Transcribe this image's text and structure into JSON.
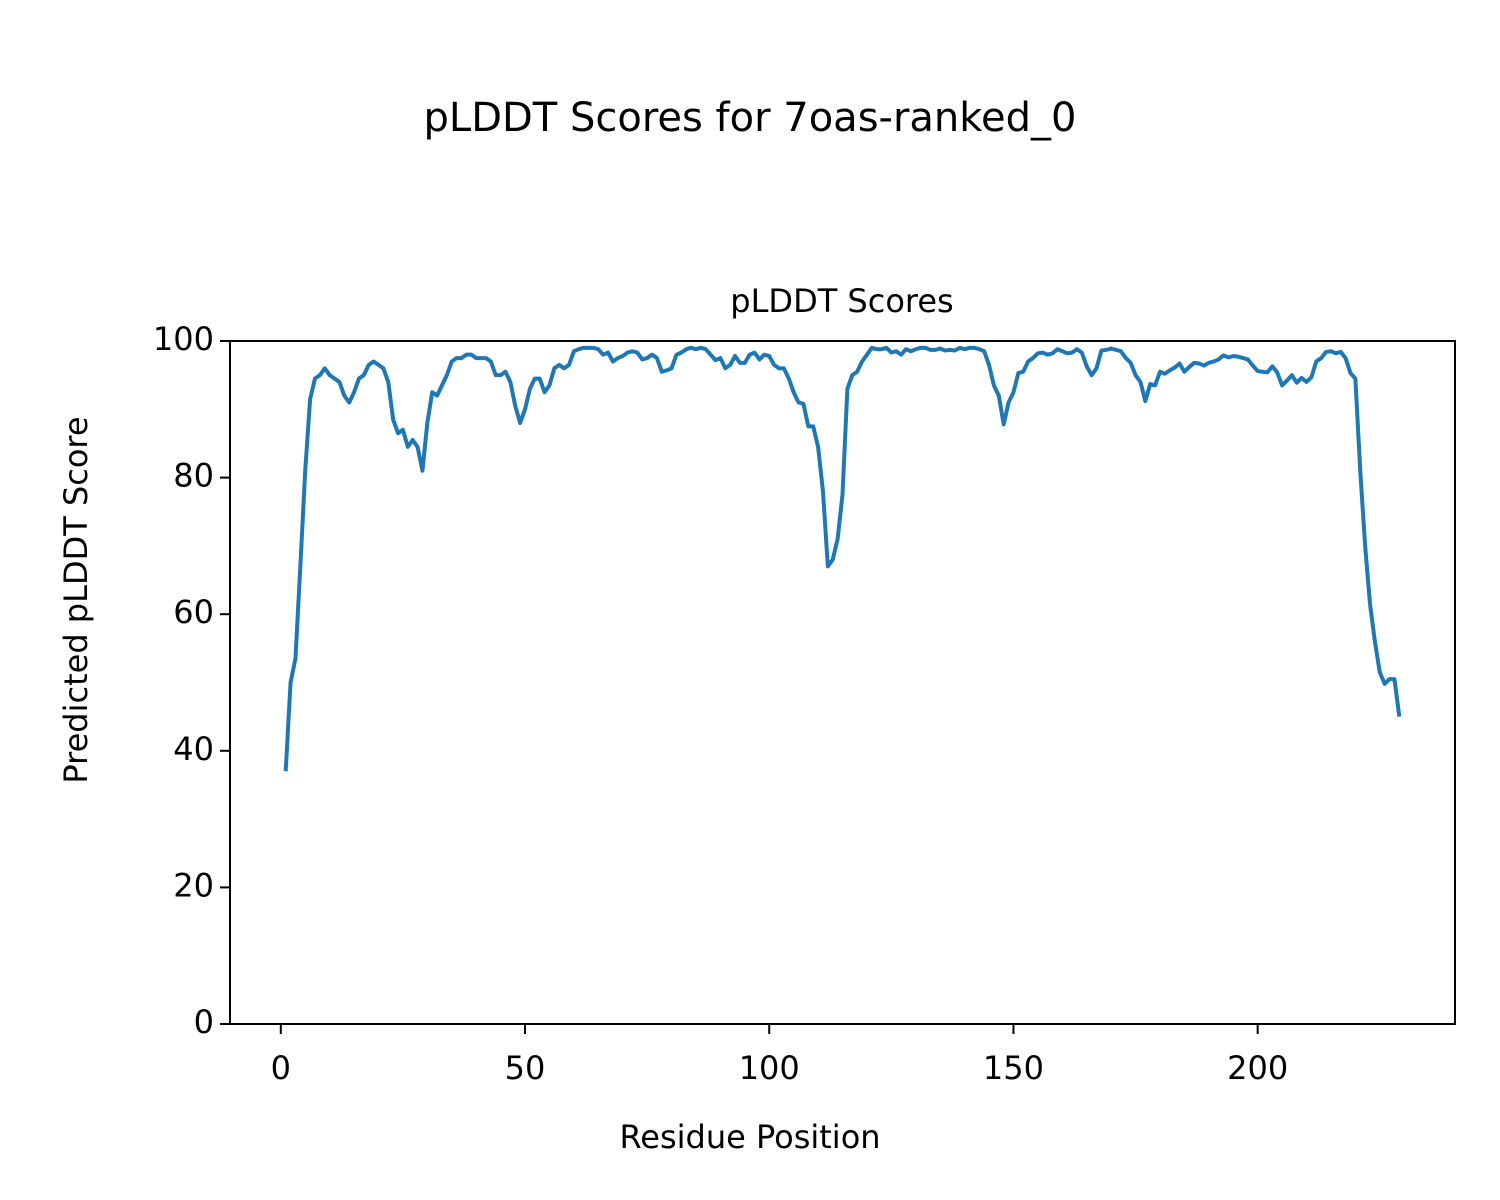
{
  "chart_data": {
    "type": "line",
    "title": "pLDDT Scores for 7oas-ranked_0",
    "subtitle": "pLDDT Scores",
    "x_label": "Residue Position",
    "y_label": "Predicted pLDDT Score",
    "x": [
      1,
      2,
      3,
      4,
      5,
      6,
      7,
      8,
      9,
      10,
      11,
      12,
      13,
      14,
      15,
      16,
      17,
      18,
      19,
      20,
      21,
      22,
      23,
      24,
      25,
      26,
      27,
      28,
      29,
      30,
      31,
      32,
      33,
      34,
      35,
      36,
      37,
      38,
      39,
      40,
      41,
      42,
      43,
      44,
      45,
      46,
      47,
      48,
      49,
      50,
      51,
      52,
      53,
      54,
      55,
      56,
      57,
      58,
      59,
      60,
      61,
      62,
      63,
      64,
      65,
      66,
      67,
      68,
      69,
      70,
      71,
      72,
      73,
      74,
      75,
      76,
      77,
      78,
      79,
      80,
      81,
      82,
      83,
      84,
      85,
      86,
      87,
      88,
      89,
      90,
      91,
      92,
      93,
      94,
      95,
      96,
      97,
      98,
      99,
      100,
      101,
      102,
      103,
      104,
      105,
      106,
      107,
      108,
      109,
      110,
      111,
      112,
      113,
      114,
      115,
      116,
      117,
      118,
      119,
      120,
      121,
      122,
      123,
      124,
      125,
      126,
      127,
      128,
      129,
      130,
      131,
      132,
      133,
      134,
      135,
      136,
      137,
      138,
      139,
      140,
      141,
      142,
      143,
      144,
      145,
      146,
      147,
      148,
      149,
      150,
      151,
      152,
      153,
      154,
      155,
      156,
      157,
      158,
      159,
      160,
      161,
      162,
      163,
      164,
      165,
      166,
      167,
      168,
      169,
      170,
      171,
      172,
      173,
      174,
      175,
      176,
      177,
      178,
      179,
      180,
      181,
      182,
      183,
      184,
      185,
      186,
      187,
      188,
      189,
      190,
      191,
      192,
      193,
      194,
      195,
      196,
      197,
      198,
      199,
      200,
      201,
      202,
      203,
      204,
      205,
      206,
      207,
      208,
      209,
      210,
      211,
      212,
      213,
      214,
      215,
      216,
      217,
      218,
      219,
      220,
      221,
      222,
      223,
      224,
      225,
      226,
      227,
      228,
      229
    ],
    "series": [
      {
        "name": "pLDDT",
        "color": "#1f77b4",
        "values": [
          37,
          50,
          53.5,
          67,
          81,
          91.5,
          94.5,
          95,
          96,
          95,
          94.5,
          94,
          92,
          91,
          92.5,
          94.5,
          95,
          96.5,
          97,
          96.5,
          96,
          94,
          88.5,
          86.5,
          87,
          84.5,
          85.5,
          84.5,
          81,
          88,
          92.5,
          92,
          93.5,
          95,
          97,
          97.5,
          97.5,
          98,
          98,
          97.5,
          97.5,
          97.5,
          97,
          95,
          95,
          95.5,
          94,
          90.5,
          88,
          90,
          93,
          94.5,
          94.5,
          92.5,
          93.5,
          96,
          96.5,
          96,
          96.5,
          98.5,
          98.8,
          99,
          99,
          99,
          98.8,
          98,
          98.3,
          97,
          97.5,
          97.8,
          98.3,
          98.5,
          98.3,
          97.3,
          97.5,
          98,
          97.5,
          95.5,
          95.7,
          96,
          98,
          98.3,
          98.8,
          99,
          98.8,
          99,
          98.8,
          98,
          97.2,
          97.5,
          96,
          96.5,
          97.8,
          96.8,
          96.8,
          98,
          98.3,
          97.3,
          98,
          97.8,
          96.5,
          96,
          96,
          94.5,
          92.5,
          91,
          90.8,
          87.5,
          87.5,
          84.5,
          78,
          67,
          68,
          71,
          77.5,
          93,
          95,
          95.5,
          97,
          98,
          99,
          98.8,
          98.8,
          99,
          98.3,
          98.5,
          98,
          98.8,
          98.5,
          98.8,
          99,
          99,
          98.7,
          98.7,
          98.9,
          98.6,
          98.7,
          98.6,
          99,
          98.8,
          99,
          99,
          98.8,
          98.5,
          96.5,
          93.5,
          92,
          87.8,
          91,
          92.5,
          95.3,
          95.5,
          97,
          97.5,
          98.2,
          98.3,
          98,
          98.2,
          98.8,
          98.5,
          98.2,
          98.3,
          98.8,
          98.3,
          96.3,
          95,
          96,
          98.6,
          98.7,
          98.9,
          98.7,
          98.5,
          97.5,
          96.8,
          95,
          94,
          91.2,
          93.7,
          93.5,
          95.5,
          95.2,
          95.7,
          96.1,
          96.7,
          95.5,
          96.2,
          96.8,
          96.7,
          96.4,
          96.8,
          97,
          97.3,
          97.9,
          97.6,
          97.8,
          97.7,
          97.5,
          97.3,
          96.4,
          95.6,
          95.5,
          95.4,
          96.3,
          95.4,
          93.5,
          94.2,
          95,
          93.9,
          94.6,
          94,
          94.7,
          97,
          97.5,
          98.4,
          98.5,
          98.2,
          98.4,
          97.5,
          95.3,
          94.5,
          81,
          70,
          61.5,
          56,
          51.5,
          49.8,
          50.5,
          50.5,
          45
        ]
      }
    ],
    "xlim": [
      -10.4,
      240.4
    ],
    "xticks": [
      0,
      50,
      100,
      150,
      200
    ],
    "ylim": [
      0,
      100
    ],
    "yticks": [
      0,
      20,
      40,
      60,
      80,
      100
    ],
    "grid": false
  }
}
